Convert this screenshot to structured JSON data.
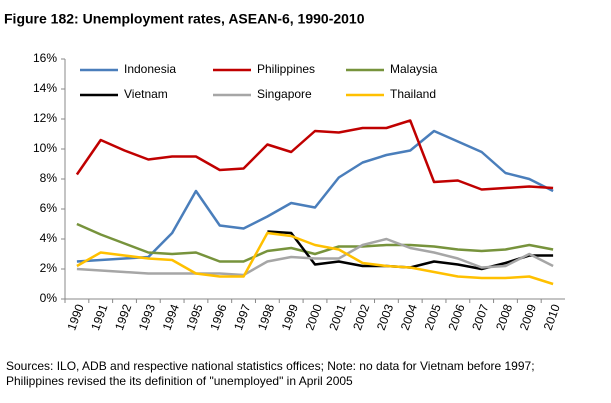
{
  "chart_data": {
    "type": "line",
    "title": "Figure 182: Unemployment rates, ASEAN-6, 1990-2010",
    "categories": [
      "1990",
      "1991",
      "1992",
      "1993",
      "1994",
      "1995",
      "1996",
      "1997",
      "1998",
      "1999",
      "2000",
      "2001",
      "2002",
      "2003",
      "2004",
      "2005",
      "2006",
      "2007",
      "2008",
      "2009",
      "2010"
    ],
    "series": [
      {
        "name": "Indonesia",
        "color": "#4a7ebb",
        "values": [
          2.5,
          2.6,
          2.7,
          2.8,
          4.4,
          7.2,
          4.9,
          4.7,
          5.5,
          6.4,
          6.1,
          8.1,
          9.1,
          9.6,
          9.9,
          11.2,
          10.5,
          9.8,
          8.4,
          8.0,
          7.2
        ]
      },
      {
        "name": "Philippines",
        "color": "#c00000",
        "values": [
          8.3,
          10.6,
          9.9,
          9.3,
          9.5,
          9.5,
          8.6,
          8.7,
          10.3,
          9.8,
          11.2,
          11.1,
          11.4,
          11.4,
          11.9,
          7.8,
          7.9,
          7.3,
          7.4,
          7.5,
          7.4
        ]
      },
      {
        "name": "Malaysia",
        "color": "#77933c",
        "values": [
          5.0,
          4.3,
          3.7,
          3.1,
          3.0,
          3.1,
          2.5,
          2.5,
          3.2,
          3.4,
          3.0,
          3.5,
          3.5,
          3.6,
          3.6,
          3.5,
          3.3,
          3.2,
          3.3,
          3.6,
          3.3
        ]
      },
      {
        "name": "Vietnam",
        "color": "#000000",
        "values": [
          null,
          null,
          null,
          null,
          null,
          null,
          null,
          null,
          4.5,
          4.4,
          2.3,
          2.5,
          2.2,
          2.2,
          2.1,
          2.5,
          2.3,
          2.0,
          2.4,
          2.9,
          2.9
        ]
      },
      {
        "name": "Singapore",
        "color": "#a6a6a6",
        "values": [
          2.0,
          1.9,
          1.8,
          1.7,
          1.7,
          1.7,
          1.7,
          1.6,
          2.5,
          2.8,
          2.7,
          2.7,
          3.6,
          4.0,
          3.4,
          3.1,
          2.7,
          2.1,
          2.2,
          3.0,
          2.2
        ]
      },
      {
        "name": "Thailand",
        "color": "#ffc000",
        "values": [
          2.2,
          3.1,
          2.9,
          2.7,
          2.6,
          1.7,
          1.5,
          1.5,
          4.4,
          4.2,
          3.6,
          3.3,
          2.4,
          2.2,
          2.1,
          1.8,
          1.5,
          1.4,
          1.4,
          1.5,
          1.0
        ]
      }
    ],
    "ylim": [
      0,
      16
    ],
    "yticks": [
      {
        "value": 0,
        "label": "0%"
      },
      {
        "value": 2,
        "label": "2%"
      },
      {
        "value": 4,
        "label": "4%"
      },
      {
        "value": 6,
        "label": "6%"
      },
      {
        "value": 8,
        "label": "8%"
      },
      {
        "value": 10,
        "label": "10%"
      },
      {
        "value": 12,
        "label": "12%"
      },
      {
        "value": 14,
        "label": "14%"
      },
      {
        "value": 16,
        "label": "16%"
      }
    ],
    "grid": false,
    "source_lines": [
      "Sources: ILO, ADB and respective national statistics offices; Note: no data for Vietnam before 1997;",
      "Philippines revised the its definition of \"unemployed\" in April 2005"
    ]
  }
}
